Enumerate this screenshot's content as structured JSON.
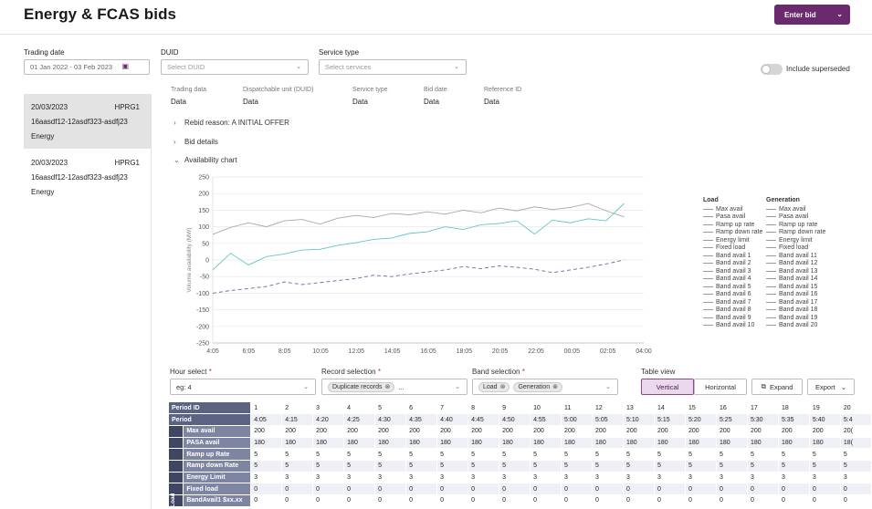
{
  "header": {
    "title": "Energy & FCAS bids",
    "enter_bid_label": "Enter bid"
  },
  "filters": {
    "trading_date": {
      "label": "Trading date",
      "value": "01 Jan 2022 - 03 Feb 2023"
    },
    "duid": {
      "label": "DUID",
      "placeholder": "Select DUID"
    },
    "service_type": {
      "label": "Service type",
      "placeholder": "Select services"
    },
    "superseded": {
      "label": "Include superseded",
      "on": false
    }
  },
  "bids": [
    {
      "date": "20/03/2023",
      "unit": "HPRG1",
      "ref": "16aasdf12-12asdf323-asdfj23",
      "service": "Energy",
      "selected": true
    },
    {
      "date": "20/03/2023",
      "unit": "HPRG1",
      "ref": "16aasdf12-12asdf323-asdfj23",
      "service": "Energy",
      "selected": false
    }
  ],
  "meta": [
    {
      "label": "Trading data",
      "value": "Data"
    },
    {
      "label": "Dispatchable unit (DUID)",
      "value": "Data"
    },
    {
      "label": "Service type",
      "value": "Data"
    },
    {
      "label": "Bid date",
      "value": "Data"
    },
    {
      "label": "Reference ID",
      "value": "Data"
    }
  ],
  "sections": {
    "rebid": "Rebid reason: A INITIAL OFFER",
    "bid_details": "Bid details",
    "availability_chart": "Availability chart"
  },
  "chart_data": {
    "type": "line",
    "ylabel": "Volume availability (MW)",
    "ylim": [
      -250,
      250
    ],
    "yticks": [
      250,
      200,
      150,
      100,
      50,
      0,
      -50,
      -100,
      -150,
      -200,
      -250
    ],
    "xticks": [
      "4:05",
      "6:05",
      "8:05",
      "10:05",
      "12:05",
      "14:05",
      "16:05",
      "18:05",
      "20:05",
      "22:05",
      "00:05",
      "02:05",
      "04:00"
    ],
    "x_hours": [
      0,
      1,
      2,
      3,
      4,
      5,
      6,
      7,
      8,
      9,
      10,
      11,
      12,
      13,
      14,
      15,
      16,
      17,
      18,
      19,
      20,
      21,
      22,
      23
    ],
    "series": [
      {
        "name": "Max avail",
        "color": "#a8a8a8",
        "dash": false,
        "values": [
          77,
          98,
          112,
          100,
          118,
          122,
          108,
          126,
          134,
          128,
          140,
          136,
          145,
          138,
          150,
          142,
          156,
          148,
          160,
          152,
          158,
          170,
          148,
          130
        ]
      },
      {
        "name": "Pasa avail",
        "color": "#5ec8c4",
        "dash": false,
        "values": [
          -30,
          20,
          -15,
          10,
          18,
          30,
          32,
          44,
          52,
          62,
          66,
          80,
          85,
          100,
          92,
          106,
          110,
          118,
          78,
          120,
          112,
          124,
          118,
          170
        ]
      },
      {
        "name": "Energy limit",
        "color": "#6a6a9a",
        "dash": true,
        "values": [
          -100,
          -92,
          -86,
          -80,
          -66,
          -74,
          -68,
          -62,
          -56,
          -46,
          -50,
          -42,
          -36,
          -30,
          -20,
          -26,
          -18,
          -22,
          -28,
          -38,
          -30,
          -22,
          -12,
          0
        ]
      }
    ],
    "legend": {
      "placement": "right",
      "load_title": "Load",
      "gen_title": "Generation",
      "load": [
        "Max avail",
        "Pasa avail",
        "Ramp up rate",
        "Ramp down rate",
        "Energy limit",
        "Fixed load",
        "Band avail 1",
        "Band avail 2",
        "Band avail 3",
        "Band avail 4",
        "Band avail 5",
        "Band avail 6",
        "Band avail 7",
        "Band avail 8",
        "Band avail 9",
        "Band avail 10"
      ],
      "generation": [
        "Max avail",
        "Pasa avail",
        "Ramp up rate",
        "Ramp down rate",
        "Energy limit",
        "Fixed load",
        "Band avail 11",
        "Band avail 12",
        "Band avail 13",
        "Band avail 14",
        "Band avail 15",
        "Band avail 16",
        "Band avail 17",
        "Band avail 18",
        "Band avail 19",
        "Band avail 20"
      ]
    }
  },
  "controls": {
    "hour_select": {
      "label": "Hour select",
      "required": "*",
      "value": "eg: 4"
    },
    "record_selection": {
      "label": "Record selection",
      "required": "*",
      "chip": "Duplicate records",
      "more": "..."
    },
    "band_selection": {
      "label": "Band selection",
      "required": "*",
      "chips": [
        "Load",
        "Generation"
      ]
    },
    "table_view": {
      "label": "Table view",
      "vertical": "Vertical",
      "horizontal": "Horizontal"
    },
    "expand_label": "Expand",
    "export_label": "Export"
  },
  "table": {
    "period_id_label": "Period ID",
    "period_label": "Period",
    "period_ids": [
      "1",
      "2",
      "3",
      "4",
      "5",
      "6",
      "7",
      "8",
      "9",
      "10",
      "11",
      "12",
      "13",
      "14",
      "15",
      "16",
      "17",
      "18",
      "19",
      "20"
    ],
    "periods": [
      "4:05",
      "4:15",
      "4:20",
      "4:25",
      "4:30",
      "4:35",
      "4:40",
      "4:45",
      "4:50",
      "4:55",
      "5:00",
      "5:05",
      "5:10",
      "5:15",
      "5:20",
      "5:25",
      "5:30",
      "5:35",
      "5:40",
      "5:4"
    ],
    "side_label": "Load",
    "rows": [
      {
        "label": "Max avail",
        "values": [
          "200",
          "200",
          "200",
          "200",
          "200",
          "200",
          "200",
          "200",
          "200",
          "200",
          "200",
          "200",
          "200",
          "200",
          "200",
          "200",
          "200",
          "200",
          "200",
          "20("
        ]
      },
      {
        "label": "PASA avail",
        "values": [
          "180",
          "180",
          "180",
          "180",
          "180",
          "180",
          "180",
          "180",
          "180",
          "180",
          "180",
          "180",
          "180",
          "180",
          "180",
          "180",
          "180",
          "180",
          "180",
          "18("
        ]
      },
      {
        "label": "Ramp up Rate",
        "values": [
          "5",
          "5",
          "5",
          "5",
          "5",
          "5",
          "5",
          "5",
          "5",
          "5",
          "5",
          "5",
          "5",
          "5",
          "5",
          "5",
          "5",
          "5",
          "5",
          "5"
        ]
      },
      {
        "label": "Ramp down Rate",
        "values": [
          "5",
          "5",
          "5",
          "5",
          "5",
          "5",
          "5",
          "5",
          "5",
          "5",
          "5",
          "5",
          "5",
          "5",
          "5",
          "5",
          "5",
          "5",
          "5",
          "5"
        ]
      },
      {
        "label": "Energy Limit",
        "values": [
          "3",
          "3",
          "3",
          "3",
          "3",
          "3",
          "3",
          "3",
          "3",
          "3",
          "3",
          "3",
          "3",
          "3",
          "3",
          "3",
          "3",
          "3",
          "3",
          "3"
        ]
      },
      {
        "label": "Fixed load",
        "values": [
          "0",
          "0",
          "0",
          "0",
          "0",
          "0",
          "0",
          "0",
          "0",
          "0",
          "0",
          "0",
          "0",
          "0",
          "0",
          "0",
          "0",
          "0",
          "0",
          "0"
        ]
      },
      {
        "label": "BandAvail1 $xx.xx",
        "values": [
          "0",
          "0",
          "0",
          "0",
          "0",
          "0",
          "0",
          "0",
          "0",
          "0",
          "0",
          "0",
          "0",
          "0",
          "0",
          "0",
          "0",
          "0",
          "0",
          "0"
        ]
      }
    ]
  }
}
